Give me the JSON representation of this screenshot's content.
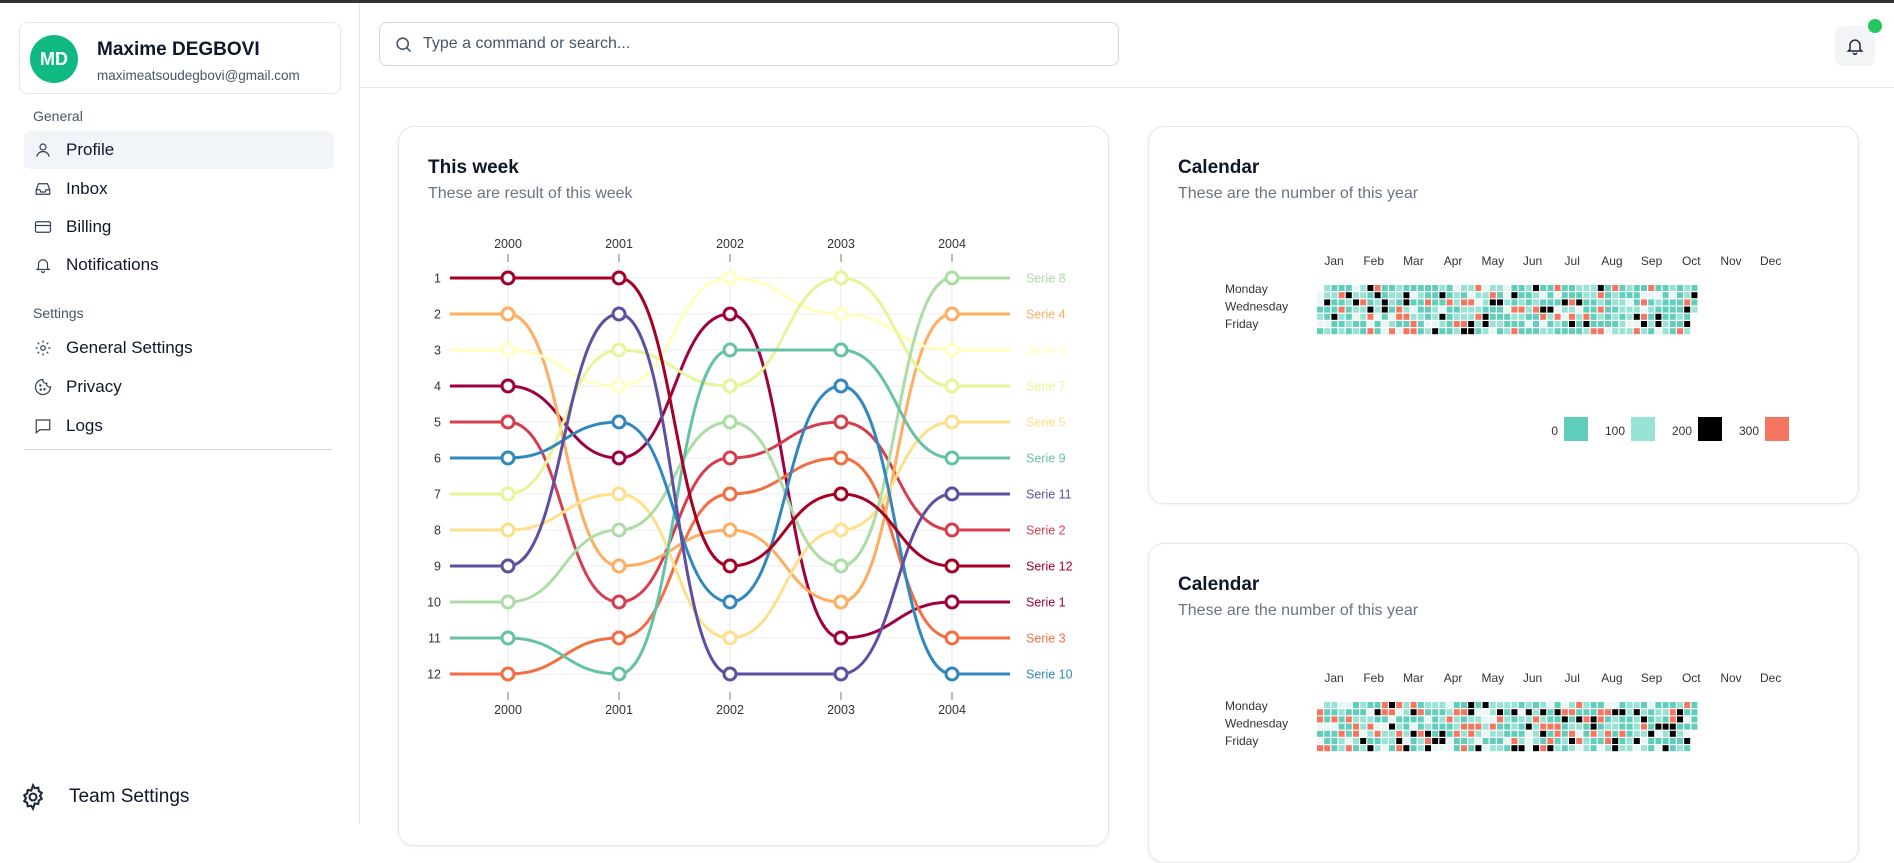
{
  "user": {
    "initials": "MD",
    "name": "Maxime DEGBOVI",
    "email": "maximeatsoudegbovi@gmail.com"
  },
  "sidebar": {
    "general_label": "General",
    "general_items": [
      {
        "label": "Profile",
        "icon": "user-icon",
        "active": true
      },
      {
        "label": "Inbox",
        "icon": "inbox-icon",
        "active": false
      },
      {
        "label": "Billing",
        "icon": "credit-card-icon",
        "active": false
      },
      {
        "label": "Notifications",
        "icon": "bell-icon",
        "active": false
      }
    ],
    "settings_label": "Settings",
    "settings_items": [
      {
        "label": "General Settings",
        "icon": "gear-icon"
      },
      {
        "label": "Privacy",
        "icon": "cookie-icon"
      },
      {
        "label": "Logs",
        "icon": "message-square-icon"
      }
    ],
    "team_label": "Team Settings"
  },
  "header": {
    "search_placeholder": "Type a command or search..."
  },
  "week_card": {
    "title": "This week",
    "subtitle": "These are result of this week"
  },
  "calendar_card_1": {
    "title": "Calendar",
    "subtitle": "These are the number of this year"
  },
  "calendar_card_2": {
    "title": "Calendar",
    "subtitle": "These are the number of this year"
  },
  "chart_data": [
    {
      "type": "bump",
      "title": "This week",
      "x": [
        "2000",
        "2001",
        "2002",
        "2003",
        "2004"
      ],
      "ranks": [
        "1",
        "2",
        "3",
        "4",
        "5",
        "6",
        "7",
        "8",
        "9",
        "10",
        "11",
        "12"
      ],
      "series": [
        {
          "name": "Serie 1",
          "color": "#9e0142",
          "values": [
            4,
            6,
            2,
            11,
            10
          ]
        },
        {
          "name": "Serie 2",
          "color": "#d53e4f",
          "values": [
            5,
            10,
            6,
            5,
            8
          ]
        },
        {
          "name": "Serie 3",
          "color": "#f46d43",
          "values": [
            12,
            11,
            7,
            6,
            11
          ]
        },
        {
          "name": "Serie 4",
          "color": "#fdae61",
          "values": [
            2,
            9,
            8,
            10,
            2
          ]
        },
        {
          "name": "Serie 5",
          "color": "#fee08b",
          "values": [
            8,
            7,
            11,
            8,
            5
          ]
        },
        {
          "name": "Serie 6",
          "color": "#ffffbf",
          "values": [
            3,
            4,
            1,
            2,
            3
          ]
        },
        {
          "name": "Serie 7",
          "color": "#e6f598",
          "values": [
            7,
            3,
            4,
            1,
            4
          ]
        },
        {
          "name": "Serie 8",
          "color": "#abdda4",
          "values": [
            10,
            8,
            5,
            9,
            1
          ]
        },
        {
          "name": "Serie 9",
          "color": "#66c2a5",
          "values": [
            11,
            12,
            3,
            3,
            6
          ]
        },
        {
          "name": "Serie 10",
          "color": "#3288bd",
          "values": [
            6,
            5,
            10,
            4,
            12
          ]
        },
        {
          "name": "Serie 11",
          "color": "#5e4fa2",
          "values": [
            9,
            2,
            12,
            12,
            7
          ]
        },
        {
          "name": "Serie 12",
          "color": "#a50026",
          "values": [
            1,
            1,
            9,
            7,
            9
          ]
        }
      ]
    },
    {
      "type": "heatmap",
      "title": "Calendar",
      "months": [
        "Jan",
        "Feb",
        "Mar",
        "Apr",
        "May",
        "Jun",
        "Jul",
        "Aug",
        "Sep",
        "Oct",
        "Nov",
        "Dec"
      ],
      "day_labels": [
        "Monday",
        "Wednesday",
        "Friday"
      ],
      "legend": [
        {
          "label": "0",
          "color": "#61cdbb"
        },
        {
          "label": "100",
          "color": "#97e3d5"
        },
        {
          "label": "200",
          "color": "#000000"
        },
        {
          "label": "300",
          "color": "#f47560"
        }
      ]
    },
    {
      "type": "heatmap",
      "title": "Calendar",
      "months": [
        "Jan",
        "Feb",
        "Mar",
        "Apr",
        "May",
        "Jun",
        "Jul",
        "Aug",
        "Sep",
        "Oct",
        "Nov",
        "Dec"
      ],
      "day_labels": [
        "Monday",
        "Wednesday",
        "Friday"
      ]
    }
  ]
}
